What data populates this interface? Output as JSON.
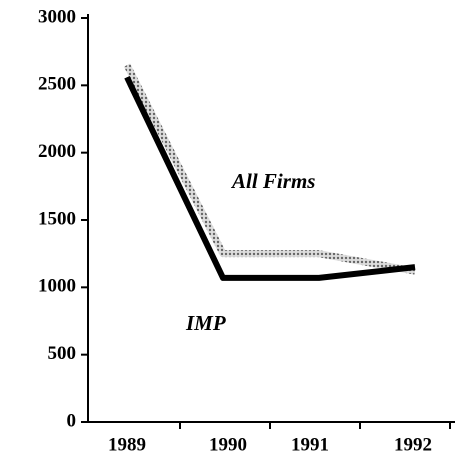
{
  "chart_data": {
    "type": "line",
    "categories": [
      "1989",
      "1990",
      "1991",
      "1992"
    ],
    "series": [
      {
        "name": "All Firms",
        "color": "#9a9a9a",
        "values": [
          2650,
          1250,
          1250,
          1120
        ]
      },
      {
        "name": "IMP",
        "color": "#000000",
        "values": [
          2560,
          1070,
          1070,
          1150
        ]
      }
    ],
    "ylim": [
      0,
      3000
    ],
    "yticks": [
      0,
      500,
      1000,
      1500,
      2000,
      2500,
      3000
    ]
  }
}
